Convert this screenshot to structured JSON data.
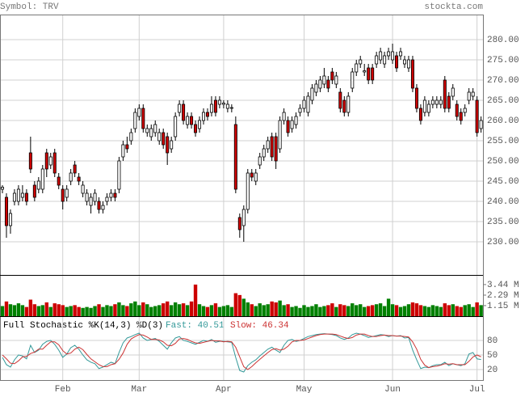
{
  "chart_data": [
    {
      "type": "candlestick",
      "title": "Symbol: TRV",
      "source": "stockta.com",
      "categories": [
        null,
        null,
        null,
        null,
        null,
        null,
        null,
        null,
        null,
        null,
        null,
        null,
        null,
        null,
        null,
        "Feb",
        null,
        null,
        null,
        null,
        null,
        null,
        null,
        null,
        null,
        null,
        null,
        null,
        null,
        null,
        null,
        null,
        null,
        null,
        "Mar",
        null,
        null,
        null,
        null,
        null,
        null,
        null,
        null,
        null,
        null,
        null,
        null,
        null,
        null,
        null,
        null,
        null,
        null,
        null,
        null,
        "Apr",
        null,
        null,
        null,
        null,
        null,
        null,
        null,
        null,
        null,
        null,
        null,
        null,
        null,
        null,
        null,
        null,
        null,
        null,
        null,
        "May",
        null,
        null,
        null,
        null,
        null,
        null,
        null,
        null,
        null,
        null,
        null,
        null,
        null,
        null,
        null,
        null,
        null,
        null,
        null,
        null,
        null,
        "Jun",
        null,
        null,
        null,
        null,
        null,
        null,
        null,
        null,
        null,
        null,
        null,
        null,
        null,
        null,
        null,
        null,
        null,
        null,
        null,
        null,
        "Jul",
        null
      ],
      "ohlc": [
        [
          243,
          244,
          242,
          243.5
        ],
        [
          241,
          242,
          231,
          234
        ],
        [
          234,
          238,
          232,
          237
        ],
        [
          240,
          243,
          239,
          242
        ],
        [
          240,
          244,
          239,
          243
        ],
        [
          241,
          244,
          240,
          242
        ],
        [
          242,
          243,
          239,
          240
        ],
        [
          252,
          256,
          247,
          248
        ],
        [
          244,
          245,
          240,
          241
        ],
        [
          243,
          246,
          242,
          245
        ],
        [
          243,
          249,
          242,
          248
        ],
        [
          252,
          253,
          246,
          248
        ],
        [
          249,
          252,
          248,
          251
        ],
        [
          252,
          253,
          246,
          247
        ],
        [
          246,
          247,
          243,
          244
        ],
        [
          243,
          244,
          238,
          240
        ],
        [
          241,
          244,
          240,
          243
        ],
        [
          245,
          248,
          244,
          247
        ],
        [
          249,
          250,
          246,
          247
        ],
        [
          246,
          247,
          244,
          245
        ],
        [
          242,
          245,
          241,
          244
        ],
        [
          240,
          243,
          239,
          242
        ],
        [
          239,
          242,
          237,
          241
        ],
        [
          240,
          243,
          239,
          242
        ],
        [
          240,
          241,
          237,
          238
        ],
        [
          238,
          240,
          237,
          239
        ],
        [
          240,
          242,
          239,
          241
        ],
        [
          241,
          243,
          240,
          242
        ],
        [
          242,
          243,
          240,
          241
        ],
        [
          243,
          251,
          242,
          250
        ],
        [
          251,
          255,
          250,
          254
        ],
        [
          254,
          256,
          252,
          253
        ],
        [
          255,
          258,
          254,
          257
        ],
        [
          258,
          263,
          257,
          262
        ],
        [
          261,
          264,
          260,
          263
        ],
        [
          263,
          264,
          257,
          258
        ],
        [
          257,
          259,
          256,
          258
        ],
        [
          256,
          259,
          255,
          258
        ],
        [
          257,
          260,
          256,
          259
        ],
        [
          255,
          258,
          254,
          257
        ],
        [
          257,
          258,
          253,
          254
        ],
        [
          256,
          257,
          249,
          252
        ],
        [
          253,
          256,
          252,
          255
        ],
        [
          256,
          262,
          255,
          261
        ],
        [
          262,
          265,
          261,
          264
        ],
        [
          264,
          265,
          259,
          260
        ],
        [
          259,
          262,
          258,
          261
        ],
        [
          261,
          262,
          258,
          259
        ],
        [
          259,
          260,
          256,
          257
        ],
        [
          258,
          261,
          257,
          260
        ],
        [
          260,
          263,
          259,
          262
        ],
        [
          262,
          263,
          260,
          261
        ],
        [
          262,
          266,
          261,
          264
        ],
        [
          265,
          266,
          261,
          262
        ],
        [
          264,
          266,
          263,
          265
        ],
        [
          264,
          265,
          263,
          264.3
        ],
        [
          263,
          265,
          262,
          264
        ],
        [
          263,
          264,
          262,
          263.2
        ],
        [
          259,
          261,
          242,
          243
        ],
        [
          236,
          237,
          231,
          233
        ],
        [
          234,
          239,
          230,
          238
        ],
        [
          238,
          248,
          237,
          247
        ],
        [
          247,
          248,
          245,
          246
        ],
        [
          245,
          248,
          244,
          247
        ],
        [
          249,
          252,
          248,
          251
        ],
        [
          251,
          254,
          250,
          253
        ],
        [
          253,
          256,
          252,
          255
        ],
        [
          256,
          257,
          250,
          251
        ],
        [
          256,
          257,
          248,
          250
        ],
        [
          253,
          261,
          252,
          260
        ],
        [
          260,
          263,
          259,
          262
        ],
        [
          260,
          261,
          256,
          257
        ],
        [
          258,
          261,
          257,
          260
        ],
        [
          259,
          262,
          258,
          261
        ],
        [
          262,
          264,
          261,
          263
        ],
        [
          263,
          266,
          262,
          265
        ],
        [
          262,
          267,
          261,
          266
        ],
        [
          265,
          269,
          264,
          268
        ],
        [
          267,
          270,
          266,
          269
        ],
        [
          268,
          271,
          267,
          270
        ],
        [
          269,
          273,
          268,
          271
        ],
        [
          270,
          271,
          267,
          268
        ],
        [
          272,
          273,
          269,
          270
        ],
        [
          269,
          272,
          268,
          271
        ],
        [
          267,
          268,
          262,
          263
        ],
        [
          265,
          266,
          261,
          262
        ],
        [
          262,
          267,
          261,
          266
        ],
        [
          268,
          273,
          267,
          272
        ],
        [
          272,
          275,
          271,
          274
        ],
        [
          274,
          276,
          273,
          275
        ],
        [
          272,
          274,
          271,
          272.3
        ],
        [
          273,
          274,
          269,
          270
        ],
        [
          273,
          274,
          269,
          270
        ],
        [
          274,
          277,
          273,
          276
        ],
        [
          275,
          278,
          274,
          277
        ],
        [
          274,
          277,
          273,
          276
        ],
        [
          276,
          278,
          275,
          277
        ],
        [
          275,
          279,
          274,
          277
        ],
        [
          276,
          277,
          272,
          273
        ],
        [
          276,
          278,
          275,
          277
        ],
        [
          274,
          276,
          273,
          275
        ],
        [
          273,
          276,
          272,
          275
        ],
        [
          275,
          276,
          267,
          268
        ],
        [
          268,
          269,
          262,
          263
        ],
        [
          263,
          264,
          259,
          260
        ],
        [
          262,
          266,
          261,
          265
        ],
        [
          262,
          265,
          261,
          264
        ],
        [
          264,
          266,
          263,
          265
        ],
        [
          264,
          266,
          263,
          265
        ],
        [
          264,
          266,
          263,
          265
        ],
        [
          270,
          271,
          262,
          263
        ],
        [
          266,
          267,
          262,
          263
        ],
        [
          266,
          269,
          265,
          268
        ],
        [
          264,
          265,
          260,
          261
        ],
        [
          262,
          263,
          259,
          260
        ],
        [
          262,
          264,
          261,
          263
        ],
        [
          265,
          268,
          264,
          267
        ],
        [
          266,
          268,
          265,
          267
        ],
        [
          265,
          266,
          256,
          257
        ],
        [
          258,
          261,
          257,
          260
        ]
      ],
      "up_color": "#ffffff",
      "down_color": "#cc0000",
      "ylim": [
        221.8,
        286.2
      ],
      "yticks": [
        {
          "value": 230,
          "label": "230.00"
        },
        {
          "value": 235,
          "label": "235.00"
        },
        {
          "value": 240,
          "label": "240.00"
        },
        {
          "value": 245,
          "label": "245.00"
        },
        {
          "value": 250,
          "label": "250.00"
        },
        {
          "value": 255,
          "label": "255.00"
        },
        {
          "value": 260,
          "label": "260.00"
        },
        {
          "value": 265,
          "label": "265.00"
        },
        {
          "value": 270,
          "label": "270.00"
        },
        {
          "value": 275,
          "label": "275.00"
        },
        {
          "value": 280,
          "label": "280.00"
        }
      ],
      "grid": true
    },
    {
      "type": "bar",
      "values": [
        1.1,
        1.6,
        1.3,
        1.2,
        1.4,
        1.2,
        1.0,
        1.8,
        1.3,
        1.1,
        1.2,
        1.5,
        1.0,
        1.4,
        1.3,
        1.2,
        1.0,
        1.1,
        1.2,
        1.0,
        0.9,
        1.0,
        0.9,
        1.1,
        1.3,
        1.0,
        1.2,
        1.1,
        1.3,
        1.5,
        1.2,
        1.1,
        1.4,
        1.6,
        1.2,
        1.5,
        1.3,
        1.0,
        1.1,
        1.2,
        1.4,
        1.6,
        1.2,
        1.5,
        1.3,
        1.4,
        1.2,
        1.6,
        3.44,
        1.3,
        1.1,
        1.0,
        1.2,
        1.4,
        1.0,
        1.1,
        1.2,
        1.0,
        2.5,
        2.3,
        1.9,
        1.5,
        1.3,
        1.1,
        1.4,
        1.2,
        1.3,
        1.6,
        1.5,
        1.7,
        1.2,
        1.3,
        1.0,
        1.1,
        0.9,
        1.2,
        1.0,
        1.1,
        1.3,
        1.0,
        1.1,
        1.2,
        1.4,
        1.0,
        1.3,
        1.2,
        1.1,
        1.4,
        1.2,
        1.3,
        1.0,
        1.1,
        1.2,
        1.3,
        1.4,
        1.1,
        1.9,
        1.3,
        1.2,
        1.0,
        1.1,
        1.3,
        1.5,
        1.4,
        1.2,
        1.1,
        1.0,
        1.2,
        1.1,
        1.0,
        1.4,
        1.2,
        1.3,
        1.1,
        1.0,
        1.2,
        1.3,
        1.0,
        1.5,
        1.2
      ],
      "up_color": "#008000",
      "down_color": "#cc0000",
      "ylim": [
        0,
        4.4
      ],
      "yticks": [
        {
          "value": 1.15,
          "label": "1.15 M"
        },
        {
          "value": 2.29,
          "label": "2.29 M"
        },
        {
          "value": 3.44,
          "label": "3.44 M"
        }
      ]
    },
    {
      "type": "line",
      "title": "Full Stochastic %K(14,3) %D(3)",
      "series": [
        {
          "name": "Fast: 40.51",
          "color": "#339999",
          "values": [
            45,
            30,
            25,
            40,
            50,
            48,
            42,
            70,
            55,
            60,
            72,
            78,
            80,
            72,
            60,
            45,
            52,
            65,
            70,
            62,
            50,
            40,
            35,
            32,
            22,
            25,
            30,
            35,
            32,
            55,
            75,
            85,
            88,
            92,
            95,
            85,
            80,
            82,
            84,
            78,
            70,
            62,
            75,
            85,
            88,
            80,
            78,
            75,
            72,
            76,
            80,
            78,
            82,
            76,
            78,
            78,
            77,
            76,
            45,
            18,
            15,
            28,
            35,
            40,
            48,
            55,
            62,
            66,
            60,
            55,
            70,
            80,
            82,
            78,
            80,
            84,
            88,
            90,
            92,
            93,
            94,
            93,
            92,
            90,
            85,
            82,
            85,
            92,
            95,
            93,
            90,
            86,
            88,
            90,
            92,
            91,
            88,
            90,
            89,
            90,
            85,
            86,
            60,
            40,
            22,
            25,
            24,
            28,
            30,
            30,
            35,
            28,
            32,
            30,
            28,
            32,
            52,
            55,
            42,
            40.51
          ]
        },
        {
          "name": "Slow: 46.34",
          "color": "#cc3333",
          "values": [
            50,
            42,
            33,
            32,
            38,
            46,
            47,
            53,
            56,
            62,
            62,
            70,
            77,
            77,
            71,
            59,
            52,
            54,
            62,
            66,
            61,
            51,
            42,
            36,
            30,
            26,
            26,
            30,
            32,
            41,
            54,
            72,
            83,
            88,
            92,
            91,
            87,
            82,
            82,
            81,
            77,
            70,
            69,
            74,
            83,
            84,
            82,
            78,
            75,
            74,
            76,
            78,
            80,
            79,
            79,
            77,
            78,
            77,
            66,
            46,
            26,
            20,
            26,
            34,
            41,
            48,
            55,
            61,
            63,
            60,
            62,
            68,
            77,
            80,
            80,
            81,
            84,
            87,
            90,
            92,
            93,
            93,
            93,
            92,
            89,
            86,
            84,
            86,
            91,
            93,
            93,
            90,
            88,
            88,
            90,
            91,
            90,
            90,
            89,
            89,
            88,
            87,
            77,
            62,
            41,
            29,
            24,
            26,
            27,
            29,
            32,
            31,
            32,
            30,
            30,
            30,
            37,
            46,
            50,
            46.34
          ]
        }
      ],
      "ylim": [
        -1.7,
        128.3
      ],
      "yticks": [
        20,
        50,
        80
      ]
    }
  ]
}
